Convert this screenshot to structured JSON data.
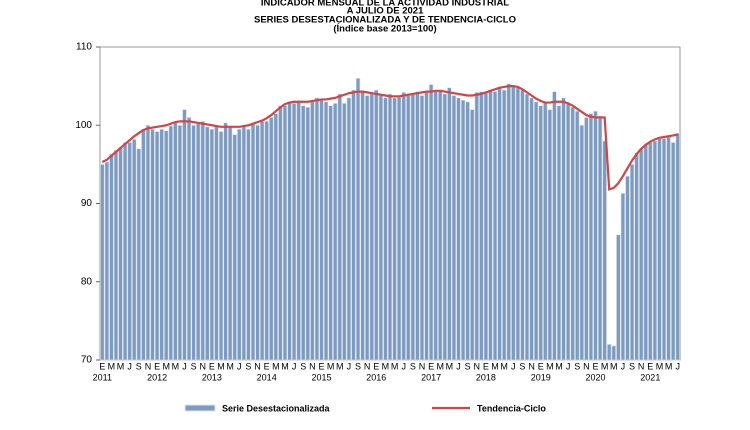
{
  "chart_data": {
    "type": "bar",
    "title_lines": [
      "INDICADOR MENSUAL DE LA ACTIVIDAD INDUSTRIAL",
      "A JULIO DE 2021",
      "SERIES DESESTACIONALIZADA  Y DE TENDENCIA-CICLO",
      "(Índice base 2013=100)"
    ],
    "categories": [
      "E",
      null,
      "M",
      null,
      "M",
      null,
      "J",
      null,
      "S",
      null,
      "N",
      null,
      "E",
      null,
      "M",
      null,
      "M",
      null,
      "J",
      null,
      "S",
      null,
      "N",
      null,
      "E",
      null,
      "M",
      null,
      "M",
      null,
      "J",
      null,
      "S",
      null,
      "N",
      null,
      "E",
      null,
      "M",
      null,
      "M",
      null,
      "J",
      null,
      "S",
      null,
      "N",
      null,
      "E",
      null,
      "M",
      null,
      "M",
      null,
      "J",
      null,
      "S",
      null,
      "N",
      null,
      "E",
      null,
      "M",
      null,
      "M",
      null,
      "J",
      null,
      "S",
      null,
      "N",
      null,
      "E",
      null,
      "M",
      null,
      "M",
      null,
      "J",
      null,
      "S",
      null,
      "N",
      null,
      "E",
      null,
      "M",
      null,
      "M",
      null,
      "J",
      null,
      "S",
      null,
      "N",
      null,
      "E",
      null,
      "M",
      null,
      "M",
      null,
      "J",
      null,
      "S",
      null,
      "N",
      null,
      "E",
      null,
      "M",
      null,
      "M",
      null,
      "J",
      null,
      "S",
      null,
      "N",
      null,
      "E",
      null,
      "M",
      null,
      "M",
      null,
      "J"
    ],
    "year_labels": [
      "2011",
      "2012",
      "2013",
      "2014",
      "2015",
      "2016",
      "2017",
      "2018",
      "2019",
      "2020",
      "2021"
    ],
    "series": [
      {
        "name": "Serie Desestacionalizada",
        "type": "bar",
        "color": "#7d9bc1",
        "values": [
          95.0,
          95.3,
          96.3,
          96.8,
          97.2,
          97.8,
          97.8,
          98.2,
          97.0,
          99.5,
          100.0,
          99.5,
          99.2,
          99.5,
          99.3,
          99.9,
          100.3,
          100.0,
          102.0,
          101.0,
          100.0,
          100.2,
          100.5,
          99.8,
          99.5,
          100.0,
          99.2,
          100.3,
          99.8,
          98.8,
          99.5,
          99.8,
          99.5,
          100.3,
          100.0,
          100.5,
          100.5,
          101.0,
          101.5,
          102.5,
          102.5,
          103.0,
          102.8,
          103.0,
          102.5,
          102.3,
          103.0,
          103.5,
          103.3,
          103.0,
          102.5,
          102.8,
          104.0,
          102.8,
          103.5,
          104.5,
          106.0,
          104.3,
          103.8,
          104.0,
          104.5,
          103.8,
          103.5,
          104.0,
          103.5,
          103.6,
          104.2,
          103.8,
          104.0,
          104.3,
          103.8,
          104.2,
          105.2,
          104.3,
          104.5,
          104.0,
          104.8,
          103.8,
          103.5,
          103.2,
          103.0,
          102.0,
          104.2,
          104.3,
          104.2,
          104.5,
          104.3,
          104.8,
          104.5,
          105.3,
          105.0,
          104.8,
          104.5,
          104.0,
          103.5,
          103.0,
          102.5,
          103.0,
          102.0,
          104.3,
          102.5,
          103.5,
          102.8,
          102.3,
          101.8,
          100.0,
          101.0,
          101.5,
          101.8,
          101.2,
          98.0,
          72.0,
          71.8,
          86.0,
          91.3,
          93.5,
          95.0,
          96.5,
          97.0,
          97.5,
          97.8,
          98.0,
          98.3,
          98.3,
          98.5,
          97.8,
          99.0
        ]
      },
      {
        "name": "Tendencia-Ciclo",
        "type": "line",
        "color": "#d24545",
        "values": [
          95.3,
          95.6,
          96.1,
          96.6,
          97.1,
          97.6,
          98.1,
          98.6,
          99.0,
          99.4,
          99.6,
          99.7,
          99.8,
          99.9,
          100.0,
          100.2,
          100.4,
          100.5,
          100.5,
          100.5,
          100.4,
          100.3,
          100.2,
          100.1,
          100.0,
          99.9,
          99.8,
          99.8,
          99.8,
          99.8,
          99.8,
          99.9,
          100.0,
          100.2,
          100.4,
          100.6,
          100.9,
          101.3,
          101.8,
          102.3,
          102.7,
          102.9,
          103.0,
          103.0,
          103.0,
          103.0,
          103.1,
          103.2,
          103.3,
          103.3,
          103.4,
          103.5,
          103.7,
          103.9,
          104.1,
          104.2,
          104.3,
          104.3,
          104.2,
          104.1,
          104.0,
          103.9,
          103.8,
          103.7,
          103.7,
          103.7,
          103.8,
          103.9,
          104.0,
          104.1,
          104.2,
          104.3,
          104.3,
          104.4,
          104.4,
          104.3,
          104.2,
          104.1,
          104.0,
          103.9,
          103.8,
          103.8,
          103.9,
          104.0,
          104.2,
          104.4,
          104.6,
          104.8,
          104.9,
          105.0,
          105.0,
          104.9,
          104.6,
          104.2,
          103.8,
          103.4,
          103.1,
          102.9,
          102.9,
          103.0,
          103.0,
          103.0,
          102.8,
          102.5,
          102.1,
          101.7,
          101.3,
          101.1,
          101.0,
          101.0,
          101.0,
          91.8,
          92.0,
          92.6,
          93.5,
          94.5,
          95.5,
          96.3,
          97.0,
          97.5,
          97.9,
          98.2,
          98.4,
          98.5,
          98.6,
          98.7,
          98.8
        ]
      }
    ],
    "ylim": [
      70,
      110
    ],
    "yticks": [
      70,
      80,
      90,
      100,
      110
    ],
    "grid": false
  }
}
